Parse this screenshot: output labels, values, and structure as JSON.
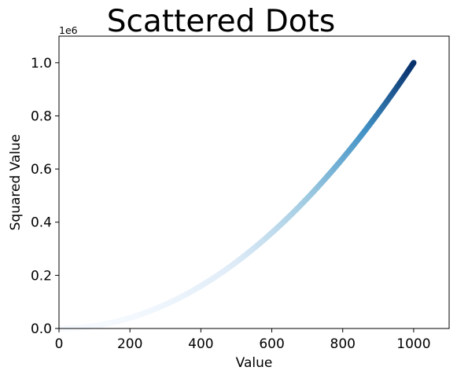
{
  "chart_data": {
    "type": "scatter",
    "title": "Scattered Dots",
    "xlabel": "Value",
    "ylabel": "Squared Value",
    "y_offset_label": "1e6",
    "xlim": [
      0,
      1100
    ],
    "ylim": [
      0,
      1100000
    ],
    "xticks": [
      0,
      200,
      400,
      600,
      800,
      1000
    ],
    "xtick_labels": [
      "0",
      "200",
      "400",
      "600",
      "800",
      "1000"
    ],
    "yticks": [
      0,
      200000,
      400000,
      600000,
      800000,
      1000000
    ],
    "ytick_labels": [
      "0.0",
      "0.2",
      "0.4",
      "0.6",
      "0.8",
      "1.0"
    ],
    "grid": false,
    "colormap": "Blues",
    "color_by": "y",
    "series": [
      {
        "x_start": 1,
        "x_end": 1000,
        "x_step": 1,
        "y_function": "x^2"
      }
    ],
    "sample_points": [
      {
        "x": 0,
        "y": 0
      },
      {
        "x": 200,
        "y": 40000
      },
      {
        "x": 400,
        "y": 160000
      },
      {
        "x": 600,
        "y": 360000
      },
      {
        "x": 800,
        "y": 640000
      },
      {
        "x": 1000,
        "y": 1000000
      }
    ],
    "colors": {
      "colormap_low": "#f7fbff",
      "colormap_mid1": "#deebf7",
      "colormap_mid2": "#9ecae1",
      "colormap_mid3": "#4292c6",
      "colormap_high": "#08306b",
      "axis": "#000000",
      "background": "#ffffff"
    }
  }
}
